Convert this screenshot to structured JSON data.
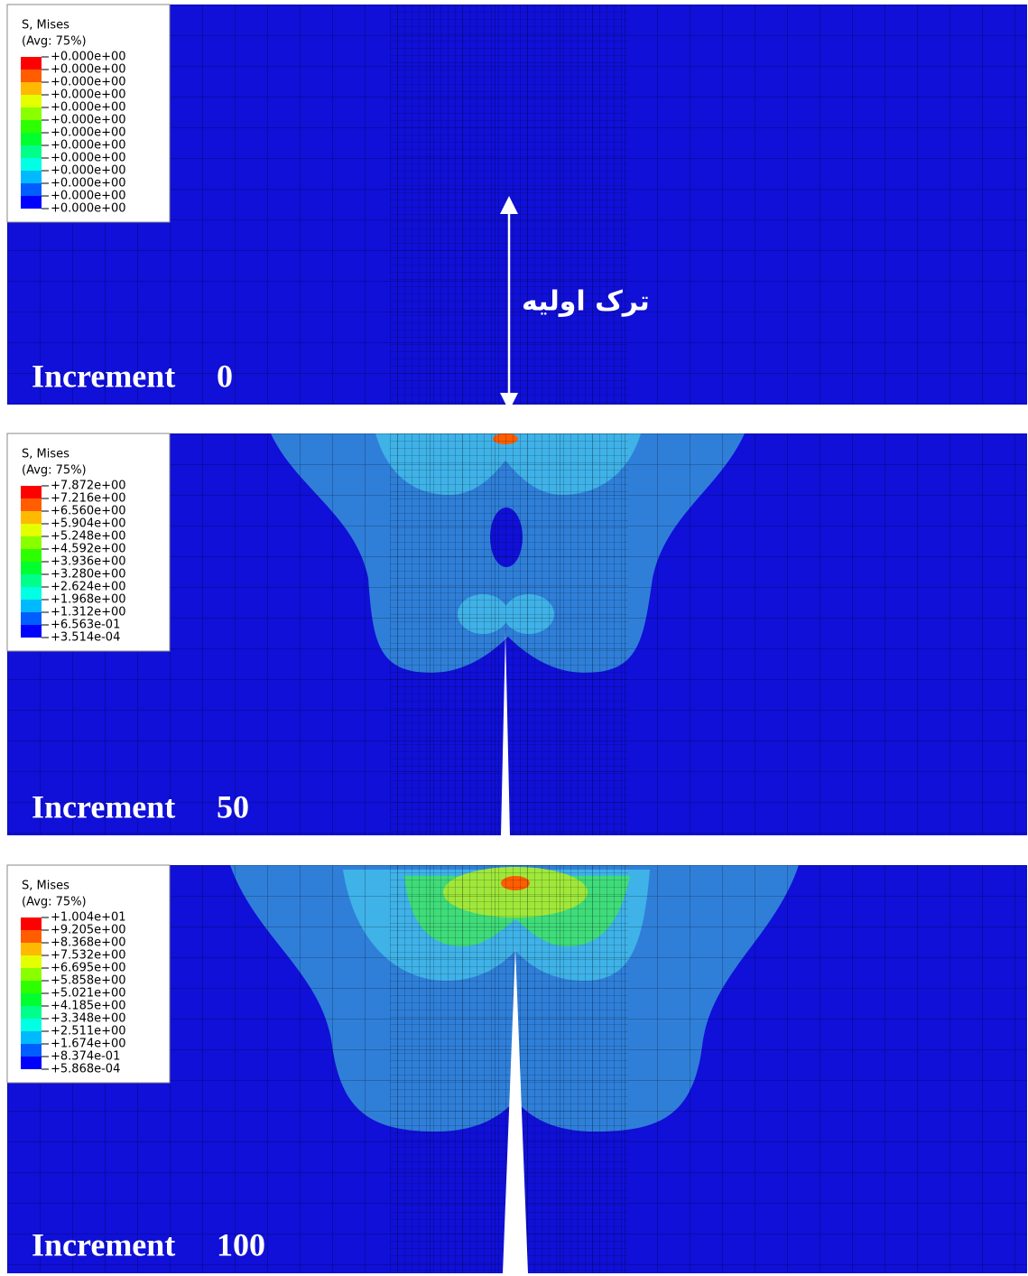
{
  "annotation": "ترک اولیه",
  "panels": [
    {
      "legend": {
        "title": "S, Mises",
        "subtitle": "(Avg: 75%)",
        "levels": [
          "+0.000e+00",
          "+0.000e+00",
          "+0.000e+00",
          "+0.000e+00",
          "+0.000e+00",
          "+0.000e+00",
          "+0.000e+00",
          "+0.000e+00",
          "+0.000e+00",
          "+0.000e+00",
          "+0.000e+00",
          "+0.000e+00",
          "+0.000e+00"
        ]
      },
      "label": "Increment",
      "increment": 0
    },
    {
      "legend": {
        "title": "S, Mises",
        "subtitle": "(Avg: 75%)",
        "levels": [
          "+7.872e+00",
          "+7.216e+00",
          "+6.560e+00",
          "+5.904e+00",
          "+5.248e+00",
          "+4.592e+00",
          "+3.936e+00",
          "+3.280e+00",
          "+2.624e+00",
          "+1.968e+00",
          "+1.312e+00",
          "+6.563e-01",
          "+3.514e-04"
        ]
      },
      "label": "Increment",
      "increment": 50
    },
    {
      "legend": {
        "title": "S, Mises",
        "subtitle": "(Avg: 75%)",
        "levels": [
          "+1.004e+01",
          "+9.205e+00",
          "+8.368e+00",
          "+7.532e+00",
          "+6.695e+00",
          "+5.858e+00",
          "+5.021e+00",
          "+4.185e+00",
          "+3.348e+00",
          "+2.511e+00",
          "+1.674e+00",
          "+8.374e-01",
          "+5.868e-04"
        ]
      },
      "label": "Increment",
      "increment": 100
    }
  ]
}
